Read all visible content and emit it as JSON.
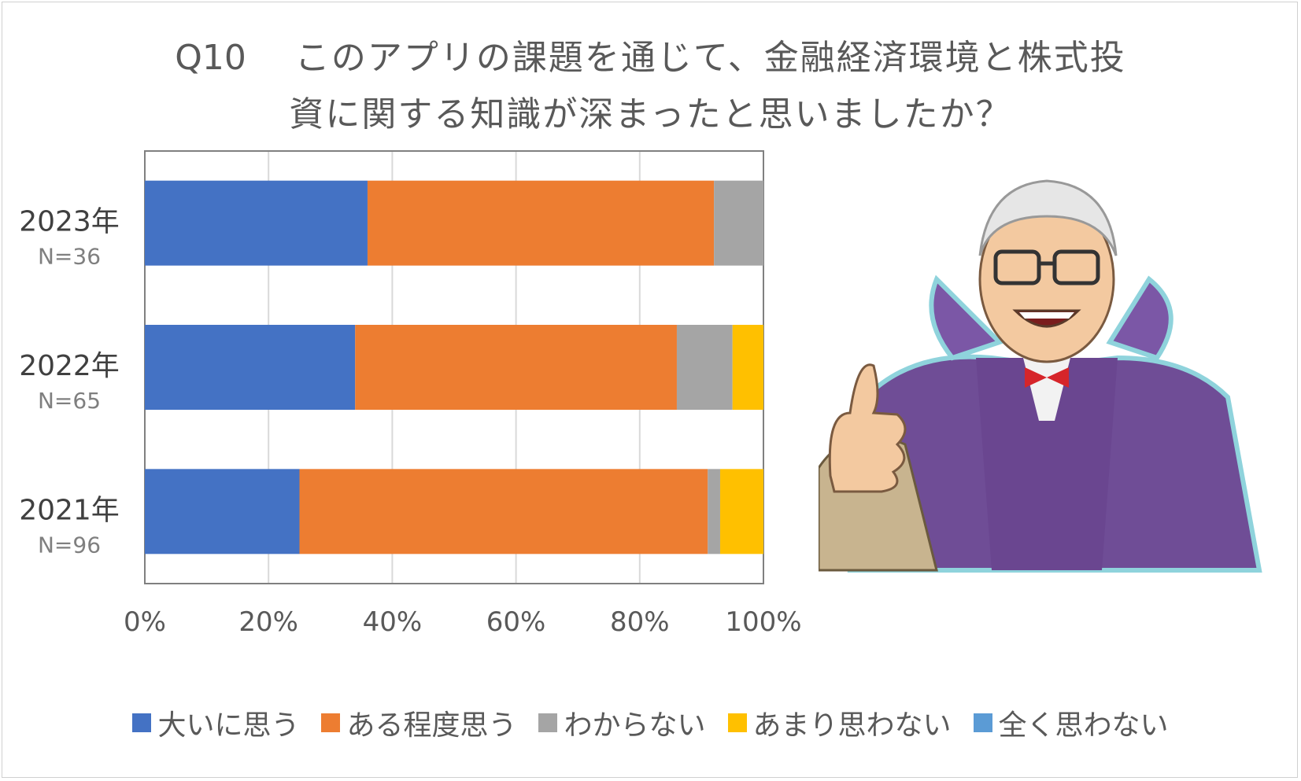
{
  "chart_data": {
    "type": "bar",
    "orientation": "horizontal",
    "stacked": true,
    "percent": true,
    "title_label": "Q10",
    "title_line1": "このアプリの課題を通じて、金融経済環境と株式投",
    "title_line2": "資に関する知識が深まったと思いましたか？",
    "categories": [
      {
        "label": "2023年",
        "sublabel": "N=36"
      },
      {
        "label": "2022年",
        "sublabel": "N=65"
      },
      {
        "label": "2021年",
        "sublabel": "N=96"
      }
    ],
    "series": [
      {
        "name": "大いに思う",
        "color": "#4472c4",
        "values": [
          36,
          34,
          25
        ]
      },
      {
        "name": "ある程度思う",
        "color": "#ed7d31",
        "values": [
          56,
          52,
          66
        ]
      },
      {
        "name": "わからない",
        "color": "#a5a5a5",
        "values": [
          8,
          9,
          2
        ]
      },
      {
        "name": "あまり思わない",
        "color": "#ffc000",
        "values": [
          0,
          5,
          7
        ]
      },
      {
        "name": "全く思わない",
        "color": "#5b9bd5",
        "values": [
          0,
          0,
          0
        ]
      }
    ],
    "xticks": [
      "0%",
      "20%",
      "40%",
      "60%",
      "80%",
      "100%"
    ],
    "xlim": [
      0,
      100
    ],
    "grid": true,
    "legend_position": "bottom"
  },
  "illustration": {
    "icon": "mascot-illustration",
    "cape_color": "#6f4d96",
    "cape_trim_color": "#8fd3dc"
  }
}
